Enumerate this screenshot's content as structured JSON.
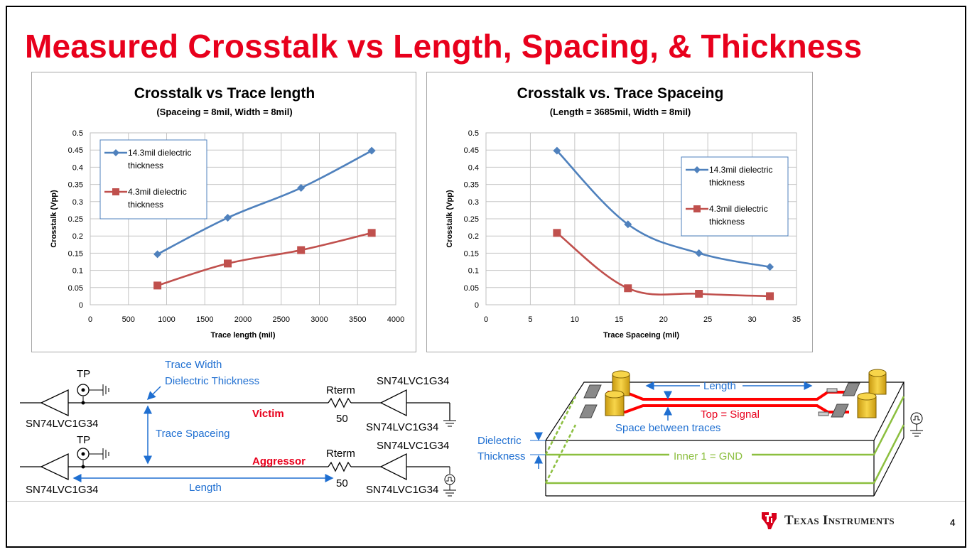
{
  "title": "Measured Crosstalk vs Length, Spacing, & Thickness",
  "chart_data": [
    {
      "type": "line",
      "title": "Crosstalk vs Trace length",
      "subtitle": "(Spaceing = 8mil, Width = 8mil)",
      "xlabel": "Trace length (mil)",
      "ylabel": "Crosstalk (Vpp)",
      "xlim": [
        0,
        4000
      ],
      "ylim": [
        0,
        0.5
      ],
      "xticks": [
        "0",
        "500",
        "1000",
        "1500",
        "2000",
        "2500",
        "3000",
        "3500",
        "4000"
      ],
      "yticks": [
        "0",
        "0.05",
        "0.1",
        "0.15",
        "0.2",
        "0.25",
        "0.3",
        "0.35",
        "0.4",
        "0.45",
        "0.5"
      ],
      "grid": true,
      "legend": "top-left",
      "series": [
        {
          "name": "14.3mil dielectric thickness",
          "legend_lines": [
            "14.3mil dielectric",
            "thickness"
          ],
          "color": "#4f81bd",
          "marker": "diamond",
          "x": [
            880,
            1800,
            2760,
            3685
          ],
          "y": [
            0.147,
            0.253,
            0.34,
            0.448
          ]
        },
        {
          "name": "4.3mil dielectric thickness",
          "legend_lines": [
            "4.3mil dielectric",
            "thickness"
          ],
          "color": "#c0504d",
          "marker": "square",
          "x": [
            880,
            1800,
            2760,
            3685
          ],
          "y": [
            0.056,
            0.12,
            0.159,
            0.209
          ]
        }
      ]
    },
    {
      "type": "line",
      "title": "Crosstalk vs. Trace Spaceing",
      "subtitle": "(Length = 3685mil, Width = 8mil)",
      "xlabel": "Trace Spaceing (mil)",
      "ylabel": "Crosstalk (Vpp)",
      "xlim": [
        0,
        35
      ],
      "ylim": [
        0,
        0.5
      ],
      "xticks": [
        "0",
        "5",
        "10",
        "15",
        "20",
        "25",
        "30",
        "35"
      ],
      "yticks": [
        "0",
        "0.05",
        "0.1",
        "0.15",
        "0.2",
        "0.25",
        "0.3",
        "0.35",
        "0.4",
        "0.45",
        "0.5"
      ],
      "grid": true,
      "legend": "top-right",
      "series": [
        {
          "name": "14.3mil dielectric thickness",
          "legend_lines": [
            "14.3mil dielectric",
            "thickness"
          ],
          "color": "#4f81bd",
          "marker": "diamond",
          "x": [
            8,
            16,
            24,
            32
          ],
          "y": [
            0.448,
            0.234,
            0.15,
            0.11
          ]
        },
        {
          "name": "4.3mil dielectric thickness",
          "legend_lines": [
            "4.3mil dielectric",
            "thickness"
          ],
          "color": "#c0504d",
          "marker": "square",
          "x": [
            8,
            16,
            24,
            32
          ],
          "y": [
            0.209,
            0.048,
            0.032,
            0.025
          ]
        }
      ]
    }
  ],
  "schematic": {
    "tp_top": "TP",
    "tp_bottom": "TP",
    "trace_width": "Trace Width",
    "dielectric_thickness": "Dielectric Thickness",
    "trace_spacing": "Trace Spaceing",
    "length": "Length",
    "victim": "Victim",
    "aggressor": "Aggressor",
    "rterm_top": "Rterm",
    "rterm_top_value": "50",
    "rterm_bottom": "Rterm",
    "rterm_bottom_value": "50",
    "driver_left_top": "SN74LVC1G34",
    "driver_left_bottom": "SN74LVC1G34",
    "driver_right_top_upper": "SN74LVC1G34",
    "driver_right_top_lower": "SN74LVC1G34",
    "driver_right_bottom_upper": "SN74LVC1G34",
    "driver_right_bottom_lower": "SN74LVC1G34"
  },
  "pcb": {
    "length": "Length",
    "top_signal": "Top = Signal",
    "space_between": "Space between traces",
    "dielectric_line1": "Dielectric",
    "dielectric_line2": "Thickness",
    "inner_gnd": "Inner 1 = GND"
  },
  "colors": {
    "title": "#e8001c",
    "annotation": "#1f6fd1",
    "victim": "#e8001c",
    "gnd_layer": "#8cbf3f",
    "trace": "#ff0000",
    "connector": "#f0c419"
  },
  "footer": {
    "brand": "Texas Instruments",
    "page": "4"
  }
}
